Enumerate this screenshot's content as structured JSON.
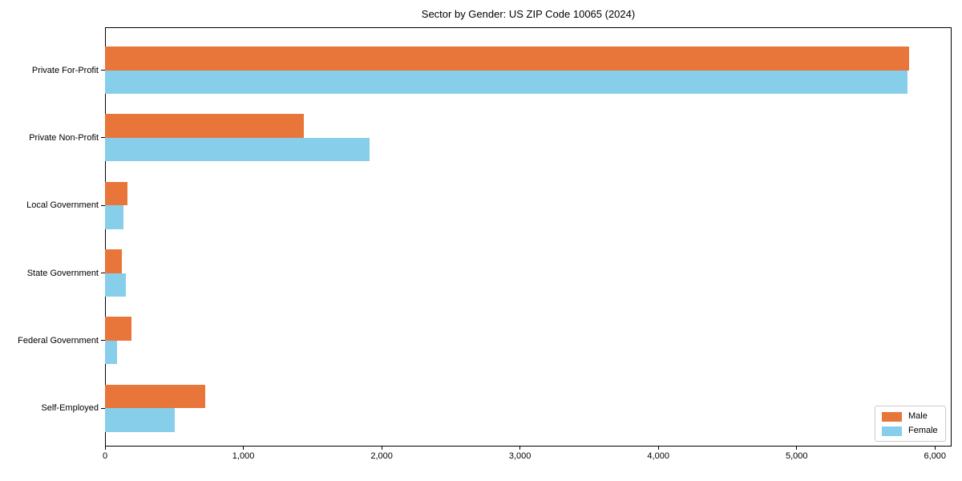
{
  "figure": {
    "background": "#ffffff",
    "plot_border_color": "#000000"
  },
  "chart_data": {
    "type": "bar",
    "orientation": "horizontal",
    "title": "Sector by Gender: US ZIP Code 10065 (2024)",
    "categories": [
      "Private For-Profit",
      "Private Non-Profit",
      "Local Government",
      "State Government",
      "Federal Government",
      "Self-Employed"
    ],
    "series": [
      {
        "name": "Male",
        "color": "#E8763B",
        "values": [
          5815,
          1435,
          160,
          120,
          190,
          725
        ]
      },
      {
        "name": "Female",
        "color": "#87CEEB",
        "values": [
          5800,
          1915,
          135,
          150,
          85,
          505
        ]
      }
    ],
    "xlabel": "",
    "ylabel": "",
    "x_tick_values": [
      0,
      1000,
      2000,
      3000,
      4000,
      5000,
      6000
    ],
    "x_tick_labels": [
      "0",
      "1,000",
      "2,000",
      "3,000",
      "4,000",
      "5,000",
      "6,000"
    ],
    "xlim": [
      0,
      6120
    ],
    "grid": false,
    "legend": {
      "position": "lower right"
    }
  }
}
